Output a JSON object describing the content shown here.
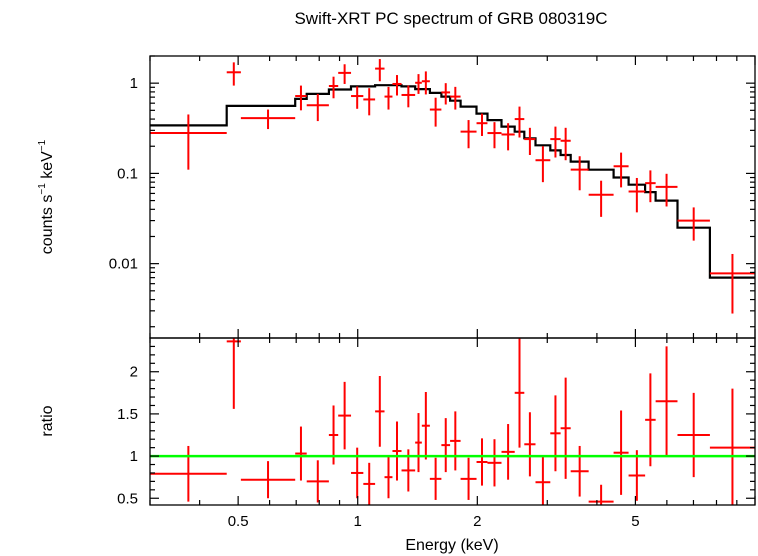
{
  "chart_data": [
    {
      "type": "scatter",
      "title": "Swift-XRT PC spectrum of GRB 080319C",
      "xlabel": "",
      "ylabel_base": "counts s",
      "ylabel_exp1": "−1",
      "ylabel_mid": " keV",
      "ylabel_exp2": "−1",
      "xscale": "log",
      "yscale": "log",
      "xlim": [
        0.3,
        10
      ],
      "ylim": [
        0.0015,
        2.0
      ],
      "yticks": [
        {
          "v": 1,
          "label": "1"
        },
        {
          "v": 0.1,
          "label": "0.1"
        },
        {
          "v": 0.01,
          "label": "0.01"
        }
      ],
      "data_color": "#ff0000",
      "model_color": "#000000",
      "series": [
        {
          "points": [
            [
              0.3,
              0.468,
              0.28,
              0.17
            ],
            [
              0.468,
              0.508,
              1.32,
              0.38
            ],
            [
              0.508,
              0.696,
              0.41,
              0.1
            ],
            [
              0.696,
              0.744,
              0.72,
              0.22
            ],
            [
              0.744,
              0.846,
              0.57,
              0.19
            ],
            [
              0.846,
              0.893,
              0.93,
              0.25
            ],
            [
              0.893,
              0.962,
              1.3,
              0.32
            ],
            [
              0.962,
              1.033,
              0.72,
              0.2
            ],
            [
              1.033,
              1.106,
              0.66,
              0.22
            ],
            [
              1.106,
              1.168,
              1.45,
              0.4
            ],
            [
              1.168,
              1.223,
              0.71,
              0.2
            ],
            [
              1.223,
              1.289,
              0.98,
              0.25
            ],
            [
              1.289,
              1.395,
              0.74,
              0.2
            ],
            [
              1.395,
              1.45,
              1.01,
              0.25
            ],
            [
              1.45,
              1.519,
              1.05,
              0.3
            ],
            [
              1.519,
              1.624,
              0.51,
              0.18
            ],
            [
              1.624,
              1.708,
              0.79,
              0.21
            ],
            [
              1.708,
              1.815,
              0.71,
              0.2
            ],
            [
              1.815,
              1.991,
              0.29,
              0.1
            ],
            [
              1.991,
              2.121,
              0.36,
              0.1
            ],
            [
              2.121,
              2.301,
              0.28,
              0.09
            ],
            [
              2.301,
              2.484,
              0.27,
              0.09
            ],
            [
              2.484,
              2.626,
              0.4,
              0.15
            ],
            [
              2.626,
              2.802,
              0.24,
              0.08
            ],
            [
              2.802,
              3.053,
              0.14,
              0.06
            ],
            [
              3.053,
              3.241,
              0.24,
              0.09
            ],
            [
              3.241,
              3.436,
              0.23,
              0.09
            ],
            [
              3.436,
              3.813,
              0.11,
              0.045
            ],
            [
              3.813,
              4.406,
              0.058,
              0.025
            ],
            [
              4.406,
              4.806,
              0.12,
              0.05
            ],
            [
              4.806,
              5.29,
              0.063,
              0.026
            ],
            [
              5.29,
              5.622,
              0.078,
              0.03
            ],
            [
              5.622,
              6.381,
              0.071,
              0.028
            ],
            [
              6.381,
              7.7,
              0.03,
              0.012
            ],
            [
              7.7,
              10.0,
              0.0078,
              0.005
            ]
          ]
        },
        {
          "name": "model",
          "steps": [
            [
              0.3,
              0.468,
              0.34
            ],
            [
              0.468,
              0.696,
              0.56
            ],
            [
              0.696,
              0.744,
              0.67
            ],
            [
              0.744,
              0.846,
              0.76
            ],
            [
              0.846,
              0.962,
              0.85
            ],
            [
              0.962,
              1.106,
              0.92
            ],
            [
              1.106,
              1.289,
              0.95
            ],
            [
              1.289,
              1.395,
              0.92
            ],
            [
              1.395,
              1.519,
              0.86
            ],
            [
              1.519,
              1.624,
              0.78
            ],
            [
              1.624,
              1.708,
              0.71
            ],
            [
              1.708,
              1.815,
              0.64
            ],
            [
              1.815,
              1.991,
              0.55
            ],
            [
              1.991,
              2.121,
              0.46
            ],
            [
              2.121,
              2.301,
              0.39
            ],
            [
              2.301,
              2.484,
              0.33
            ],
            [
              2.484,
              2.626,
              0.29
            ],
            [
              2.626,
              2.802,
              0.245
            ],
            [
              2.802,
              3.053,
              0.205
            ],
            [
              3.053,
              3.241,
              0.18
            ],
            [
              3.241,
              3.436,
              0.16
            ],
            [
              3.436,
              3.813,
              0.135
            ],
            [
              3.813,
              4.406,
              0.11
            ],
            [
              4.406,
              4.806,
              0.09
            ],
            [
              4.806,
              5.29,
              0.075
            ],
            [
              5.29,
              5.622,
              0.062
            ],
            [
              5.622,
              6.381,
              0.05
            ],
            [
              6.381,
              7.7,
              0.025
            ],
            [
              7.7,
              10.0,
              0.007
            ]
          ]
        }
      ]
    },
    {
      "type": "scatter",
      "xlabel": "Energy (keV)",
      "ylabel": "ratio",
      "xscale": "log",
      "xlim": [
        0.3,
        10
      ],
      "ylim": [
        0.42,
        2.4
      ],
      "xticks": [
        {
          "v": 0.5,
          "label": "0.5"
        },
        {
          "v": 1,
          "label": "1"
        },
        {
          "v": 2,
          "label": "2"
        },
        {
          "v": 5,
          "label": "5"
        }
      ],
      "yticks": [
        {
          "v": 0.5,
          "label": "0.5"
        },
        {
          "v": 1,
          "label": "1"
        },
        {
          "v": 1.5,
          "label": "1.5"
        },
        {
          "v": 2,
          "label": "2"
        }
      ],
      "reference_line": 1,
      "reference_color": "#00ff00",
      "data_color": "#ff0000",
      "series": [
        {
          "points": [
            [
              0.3,
              0.468,
              0.79,
              0.33
            ],
            [
              0.468,
              0.508,
              2.36,
              0.8
            ],
            [
              0.508,
              0.696,
              0.72,
              0.22
            ],
            [
              0.696,
              0.744,
              1.03,
              0.32
            ],
            [
              0.744,
              0.846,
              0.7,
              0.25
            ],
            [
              0.846,
              0.893,
              1.25,
              0.35
            ],
            [
              0.893,
              0.962,
              1.48,
              0.4
            ],
            [
              0.962,
              1.033,
              0.8,
              0.3
            ],
            [
              1.033,
              1.106,
              0.67,
              0.25
            ],
            [
              1.106,
              1.168,
              1.53,
              0.42
            ],
            [
              1.168,
              1.223,
              0.75,
              0.25
            ],
            [
              1.223,
              1.289,
              1.06,
              0.35
            ],
            [
              1.289,
              1.395,
              0.83,
              0.25
            ],
            [
              1.395,
              1.45,
              1.16,
              0.35
            ],
            [
              1.45,
              1.519,
              1.36,
              0.4
            ],
            [
              1.519,
              1.624,
              0.73,
              0.25
            ],
            [
              1.624,
              1.708,
              1.13,
              0.32
            ],
            [
              1.708,
              1.815,
              1.18,
              0.35
            ],
            [
              1.815,
              1.991,
              0.73,
              0.25
            ],
            [
              1.991,
              2.121,
              0.93,
              0.28
            ],
            [
              2.121,
              2.301,
              0.92,
              0.28
            ],
            [
              2.301,
              2.484,
              1.05,
              0.33
            ],
            [
              2.484,
              2.626,
              1.75,
              0.65
            ],
            [
              2.626,
              2.802,
              1.14,
              0.38
            ],
            [
              2.802,
              3.053,
              0.69,
              0.3
            ],
            [
              3.053,
              3.241,
              1.27,
              0.45
            ],
            [
              3.241,
              3.436,
              1.33,
              0.6
            ],
            [
              3.436,
              3.813,
              0.82,
              0.3
            ],
            [
              3.813,
              4.406,
              0.46,
              0.2
            ],
            [
              4.406,
              4.806,
              1.04,
              0.5
            ],
            [
              4.806,
              5.29,
              0.77,
              0.3
            ],
            [
              5.29,
              5.622,
              1.43,
              0.55
            ],
            [
              5.622,
              6.381,
              1.65,
              0.65
            ],
            [
              6.381,
              7.7,
              1.25,
              0.5
            ],
            [
              7.7,
              10.0,
              1.1,
              0.7
            ]
          ]
        }
      ]
    }
  ]
}
